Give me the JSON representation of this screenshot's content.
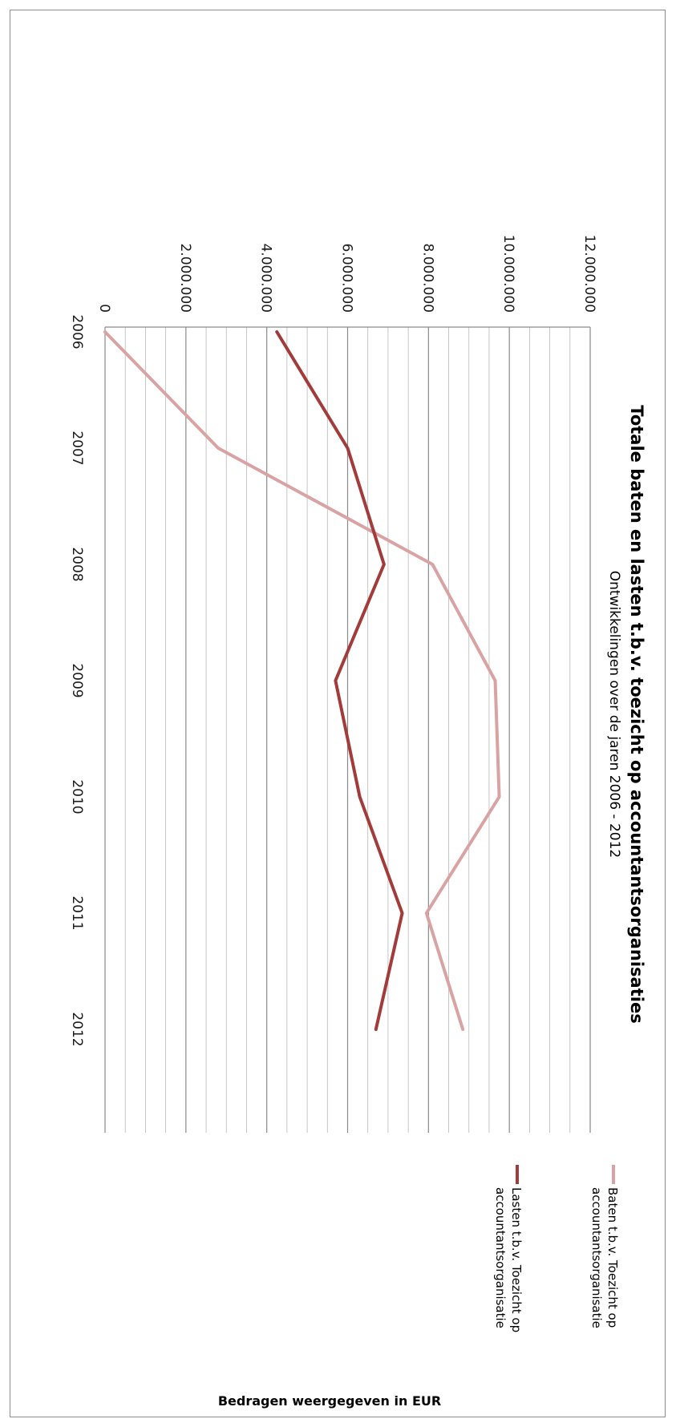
{
  "chart_data": {
    "type": "line",
    "title": "Totale baten en lasten t.b.v. toezicht op accountantsorganisaties",
    "subtitle": "Ontwikkelingen over de jaren 2006 - 2012",
    "ylabel": "Bedragen weergegeven in EUR",
    "xlabel": "",
    "categories": [
      "2006",
      "2007",
      "2008",
      "2009",
      "2010",
      "2011",
      "2012"
    ],
    "ylim": [
      0,
      12000000
    ],
    "yticks": [
      0,
      2000000,
      4000000,
      6000000,
      8000000,
      10000000,
      12000000
    ],
    "ytick_labels": [
      "0",
      "2.000.000",
      "4.000.000",
      "6.000.000",
      "8.000.000",
      "10.000.000",
      "12.000.000"
    ],
    "grid": true,
    "legend_position": "right",
    "orientation": "rotated-90-clockwise",
    "series": [
      {
        "name": "Baten t.b.v. Toezicht op accountantsorganisatie",
        "color": "#d9a3a3",
        "values": [
          0,
          2800000,
          8100000,
          9650000,
          9750000,
          7950000,
          8850000
        ]
      },
      {
        "name": "Lasten t.b.v. Toezicht op accountantsorganisatie",
        "color": "#a33b3b",
        "values": [
          4250000,
          6000000,
          6900000,
          5700000,
          6300000,
          7350000,
          6700000
        ]
      }
    ]
  }
}
